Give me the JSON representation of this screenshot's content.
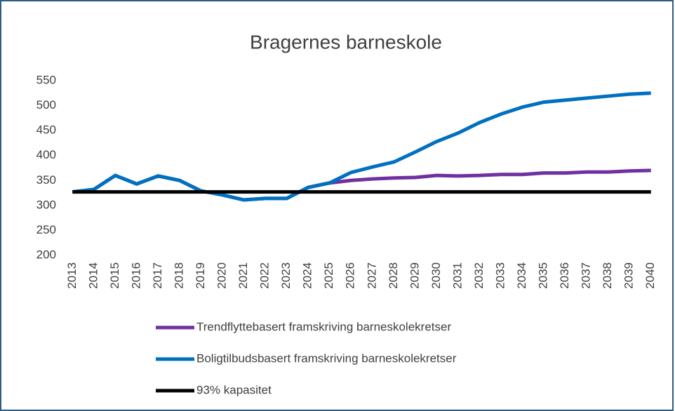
{
  "chart_data": {
    "type": "line",
    "title": "Bragernes barneskole",
    "categories": [
      "2013",
      "2014",
      "2015",
      "2016",
      "2017",
      "2018",
      "2019",
      "2020",
      "2021",
      "2022",
      "2023",
      "2024",
      "2025",
      "2026",
      "2027",
      "2028",
      "2029",
      "2030",
      "2031",
      "2032",
      "2033",
      "2034",
      "2035",
      "2036",
      "2037",
      "2038",
      "2039",
      "2040"
    ],
    "series": [
      {
        "name": "Trendflyttebasert framskriving barneskolekretser",
        "color": "#7030a0",
        "values": [
          327,
          332,
          360,
          343,
          359,
          350,
          329,
          321,
          311,
          314,
          314,
          336,
          345,
          350,
          353,
          355,
          356,
          360,
          359,
          360,
          362,
          362,
          365,
          365,
          367,
          367,
          369,
          370
        ]
      },
      {
        "name": "Boligtilbudsbasert framskriving barneskolekretser",
        "color": "#0070c0",
        "values": [
          327,
          332,
          360,
          343,
          359,
          350,
          329,
          321,
          311,
          314,
          314,
          336,
          345,
          366,
          377,
          387,
          407,
          428,
          445,
          466,
          483,
          497,
          507,
          511,
          515,
          519,
          523,
          525
        ]
      },
      {
        "name": "93% kapasitet",
        "color": "#000000",
        "values": [
          327,
          327,
          327,
          327,
          327,
          327,
          327,
          327,
          327,
          327,
          327,
          327,
          327,
          327,
          327,
          327,
          327,
          327,
          327,
          327,
          327,
          327,
          327,
          327,
          327,
          327,
          327,
          327
        ]
      }
    ],
    "ylim": [
      200,
      550
    ],
    "yticks": [
      200,
      250,
      300,
      350,
      400,
      450,
      500,
      550
    ],
    "grid": false
  }
}
